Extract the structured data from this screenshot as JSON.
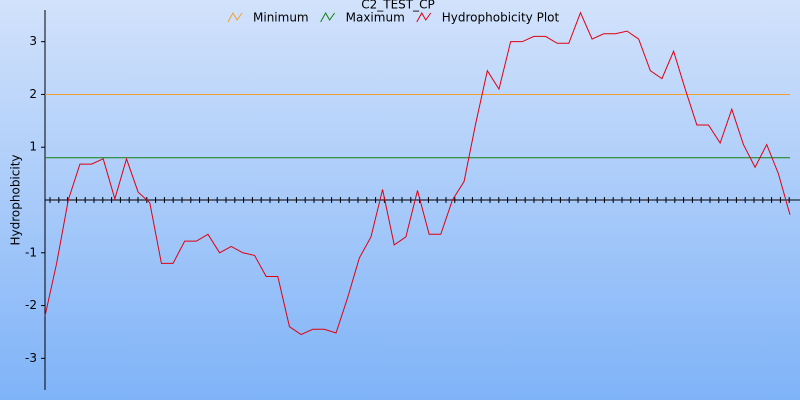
{
  "chart_data": {
    "type": "line",
    "title": "C2_TEST_CP",
    "y_label": "Hydrophobicity",
    "ylim": [
      -3.6,
      3.6
    ],
    "yticks": [
      -3,
      -2,
      -1,
      1,
      2,
      3
    ],
    "reference_lines": [
      {
        "name": "Minimum",
        "color": "#f0a030",
        "value": 2
      },
      {
        "name": "Maximum",
        "color": "#108010",
        "value": 0.8
      }
    ],
    "series": [
      {
        "name": "Hydrophobicity Plot",
        "color": "#e00010",
        "values": [
          -2.2,
          -1.2,
          0,
          0.68,
          0.68,
          0.78,
          0.02,
          0.78,
          0.15,
          -0.05,
          -1.2,
          -1.2,
          -0.78,
          -0.78,
          -0.65,
          -1.0,
          -0.88,
          -1.0,
          -1.05,
          -1.45,
          -1.45,
          -2.4,
          -2.55,
          -2.45,
          -2.45,
          -2.52,
          -1.85,
          -1.1,
          -0.7,
          0.2,
          -0.85,
          -0.7,
          0.18,
          -0.65,
          -0.65,
          0,
          0.35,
          1.45,
          2.45,
          2.1,
          3.0,
          3.0,
          3.1,
          3.1,
          2.97,
          2.97,
          3.55,
          3.05,
          3.15,
          3.15,
          3.2,
          3.05,
          2.45,
          2.3,
          2.82,
          2.1,
          1.42,
          1.42,
          1.08,
          1.72,
          1.05,
          0.62,
          1.05,
          0.5,
          -0.28
        ]
      }
    ]
  }
}
